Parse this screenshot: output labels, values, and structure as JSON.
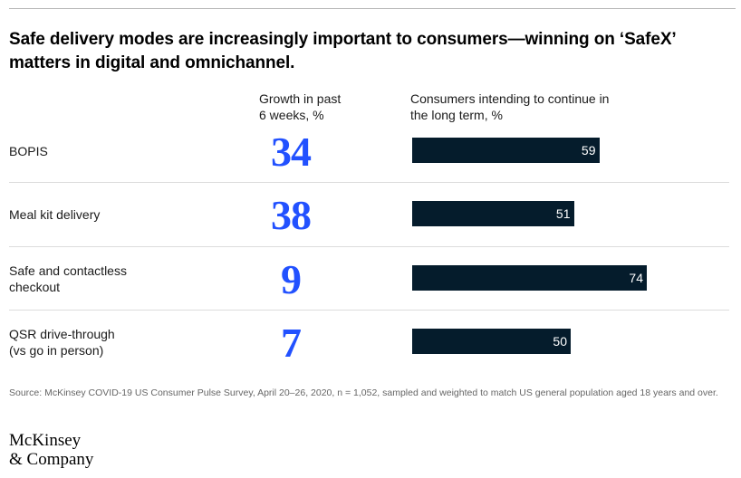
{
  "title": "Safe delivery modes are increasingly important to consumers—winning on ‘SafeX’ matters in digital and omnichannel.",
  "columns": {
    "growth_header": [
      "Growth in past",
      "6 weeks, %"
    ],
    "continue_header": [
      "Consumers intending to continue in",
      "the long term, %"
    ]
  },
  "chart_data": {
    "type": "bar",
    "orientation": "horizontal",
    "categories": [
      [
        "BOPIS"
      ],
      [
        "Meal kit delivery"
      ],
      [
        "Safe and contactless",
        "checkout"
      ],
      [
        "QSR drive-through",
        "(vs go in person)"
      ]
    ],
    "growth_values": [
      34,
      38,
      9,
      7
    ],
    "series": [
      {
        "values": [
          59,
          51,
          74,
          50
        ]
      }
    ],
    "xlim": [
      0,
      100
    ],
    "grid": false
  },
  "colors": {
    "accent": "#2251ff",
    "bar": "#051c2c",
    "divider": "#dcdcdc"
  },
  "source": "Source: McKinsey COVID-19 US Consumer Pulse Survey, April 20–26, 2020, n = 1,052, sampled and weighted to match US general population aged 18 years and over.",
  "logo": {
    "line1": "McKinsey",
    "line2": "& Company"
  }
}
